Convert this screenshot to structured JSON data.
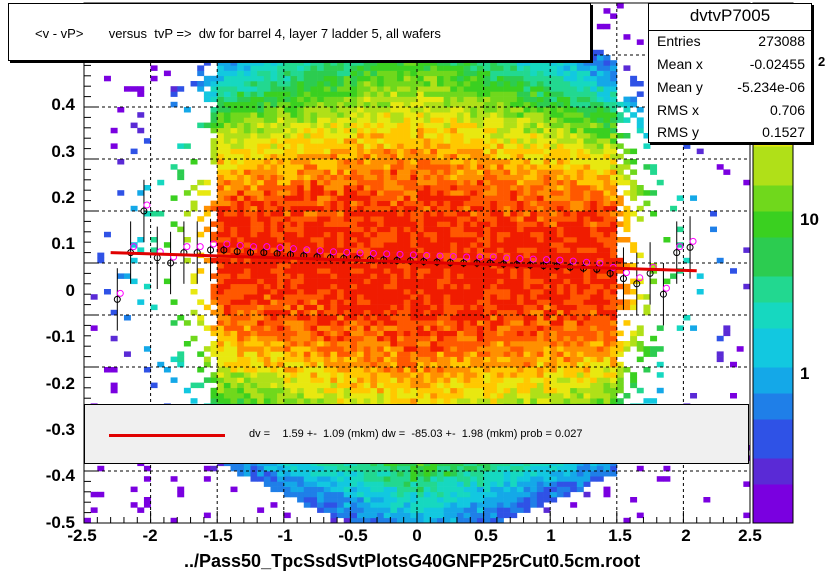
{
  "title": "<v - vP>       versus  tvP =>  dw for barrel 4, layer 7 ladder 5, all wafers",
  "stats": {
    "name": "dvtvP7005",
    "rows": [
      {
        "label": "Entries",
        "value": "273088"
      },
      {
        "label": "Mean x",
        "value": "-0.02455"
      },
      {
        "label": "Mean y",
        "value": "-5.234e-06"
      },
      {
        "label": "RMS x",
        "value": "0.706"
      },
      {
        "label": "RMS y",
        "value": "0.1527"
      }
    ]
  },
  "fit_text": "dv =    1.59 +-  1.09 (mkm) dw =  -85.03 +-  1.98 (mkm) prob = 0.027",
  "x_axis_title": "../Pass50_TpcSsdSvtPlotsG40GNFP25rCut0.5cm.root",
  "x_ticks": [
    "-2.5",
    "-2",
    "-1.5",
    "-1",
    "-0.5",
    "0",
    "0.5",
    "1",
    "1.5",
    "2",
    "2.5"
  ],
  "y_ticks": [
    "-0.5",
    "-0.4",
    "-0.3",
    "-0.2",
    "-0.1",
    "0",
    "0.1",
    "0.2",
    "0.3",
    "0.4"
  ],
  "z_ticks": [
    "1",
    "10"
  ],
  "z_exponent": "2",
  "colors": {
    "fit_line": "#e00000",
    "profile_open": "#ff00ff",
    "profile_black": "#000000"
  },
  "chart_data": {
    "type": "heatmap",
    "xlim": [
      -2.5,
      2.5
    ],
    "ylim": [
      -0.5,
      0.5
    ],
    "zscale": "log",
    "grid": true,
    "fit": {
      "dv_mkm": 1.59,
      "dv_err": 1.09,
      "dw_mkm": -85.03,
      "dw_err": 1.98,
      "prob": 0.027,
      "y_at_xmin": 0.02,
      "y_at_xmax": -0.015
    },
    "profile": {
      "x": [
        -2.25,
        -2.15,
        -2.05,
        -1.95,
        -1.85,
        -1.75,
        -1.65,
        -1.55,
        -1.45,
        -1.35,
        -1.25,
        -1.15,
        -1.05,
        -0.95,
        -0.85,
        -0.75,
        -0.65,
        -0.55,
        -0.45,
        -0.35,
        -0.25,
        -0.15,
        -0.05,
        0.05,
        0.15,
        0.25,
        0.35,
        0.45,
        0.55,
        0.65,
        0.75,
        0.85,
        0.95,
        1.05,
        1.15,
        1.25,
        1.35,
        1.45,
        1.55,
        1.65,
        1.75,
        1.85,
        1.95,
        2.05
      ],
      "y": [
        -0.07,
        0.02,
        0.1,
        0.01,
        0.0,
        0.02,
        0.02,
        0.025,
        0.025,
        0.022,
        0.02,
        0.02,
        0.018,
        0.016,
        0.014,
        0.012,
        0.01,
        0.009,
        0.008,
        0.007,
        0.006,
        0.005,
        0.004,
        0.003,
        0.002,
        0.001,
        0.0,
        0.0,
        0.0,
        -0.002,
        -0.003,
        -0.004,
        -0.005,
        -0.006,
        -0.008,
        -0.01,
        -0.012,
        -0.02,
        -0.03,
        -0.04,
        -0.02,
        -0.06,
        0.02,
        0.03
      ]
    }
  }
}
